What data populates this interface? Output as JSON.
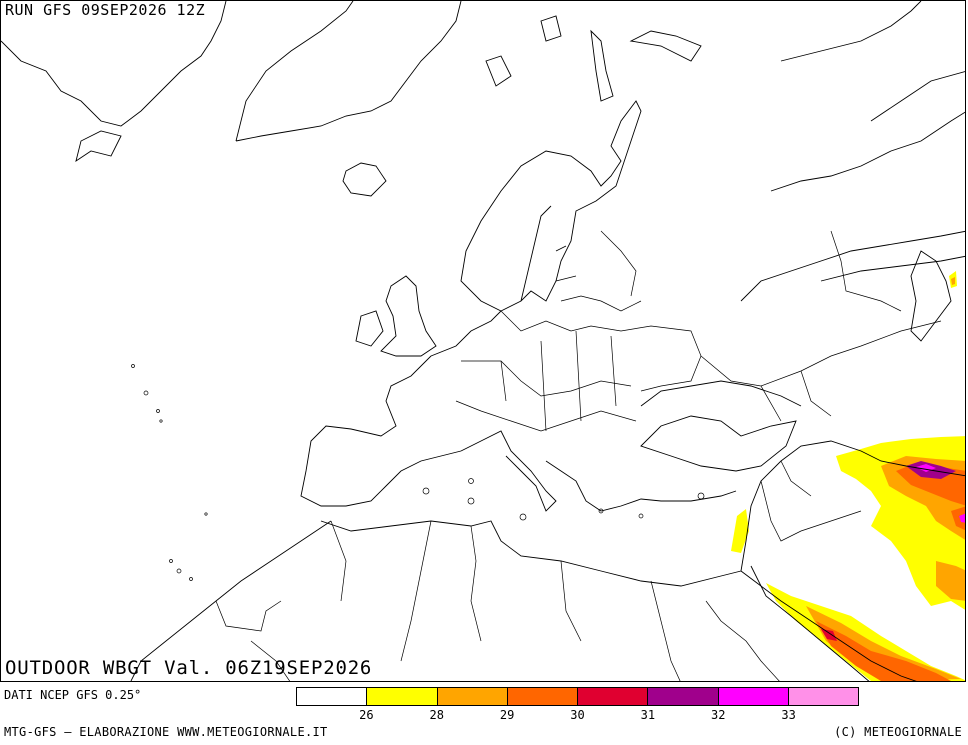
{
  "header": {
    "run_label": "RUN GFS 09SEP2026 12Z"
  },
  "map": {
    "title": "OUTDOOR WBGT Val. 06Z19SEP2026",
    "source": "DATI NCEP GFS 0.25°"
  },
  "legend": {
    "colors": [
      "#ffffff",
      "#ffff00",
      "#ffa500",
      "#ff6600",
      "#e00030",
      "#a0008c",
      "#ff00ff",
      "#ff90e8"
    ],
    "ticks": [
      "26",
      "28",
      "29",
      "30",
      "31",
      "32",
      "33"
    ]
  },
  "footer": {
    "left": "MTG-GFS — ELABORAZIONE WWW.METEOGIORNALE.IT",
    "right": "(C) METEOGIORNALE"
  }
}
